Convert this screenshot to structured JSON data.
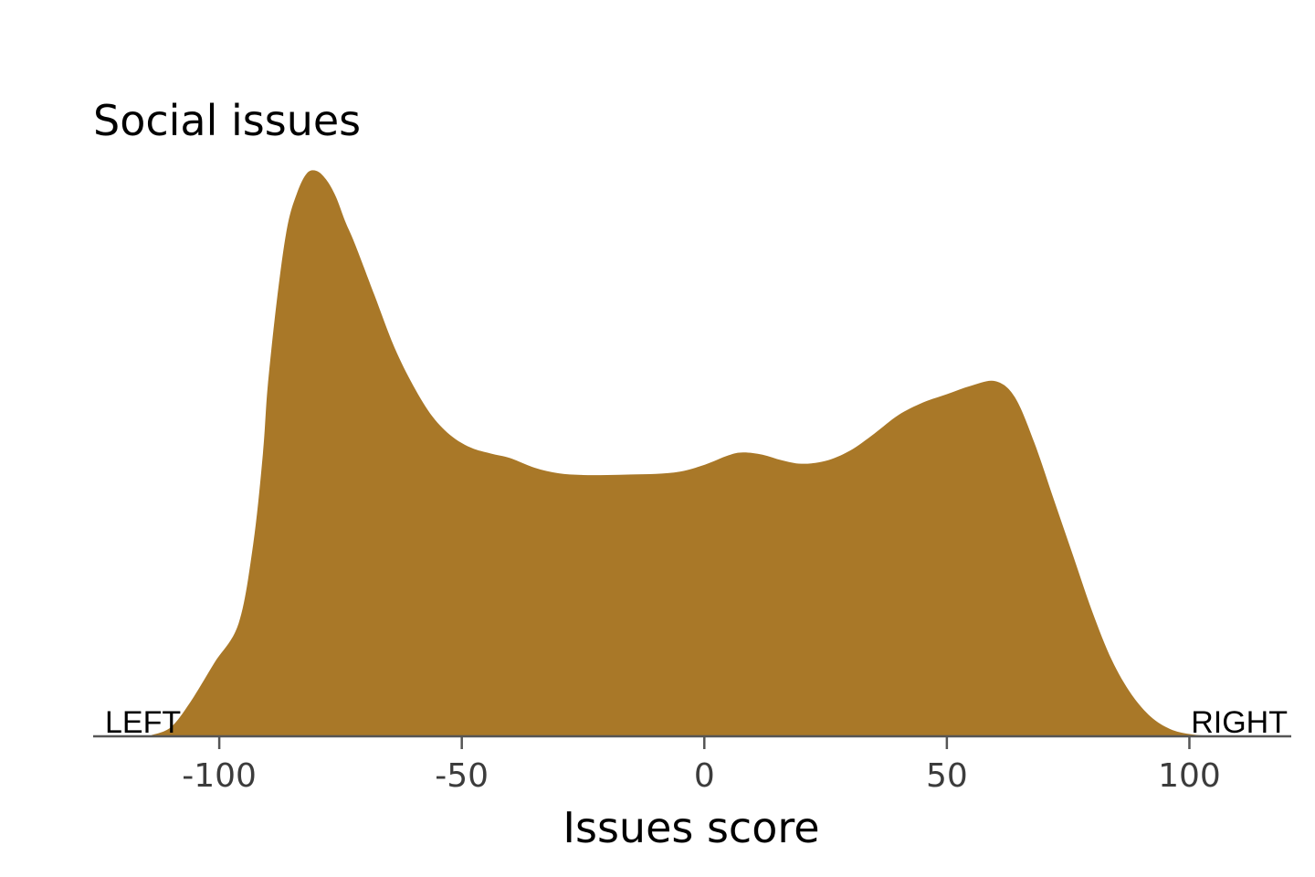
{
  "chart_data": {
    "type": "area",
    "title": "Social issues",
    "xlabel": "Issues score",
    "ylabel": "",
    "xlim": [
      -126,
      121
    ],
    "ylim": [
      0,
      1.0
    ],
    "x_ticks": [
      -100,
      -50,
      0,
      50,
      100
    ],
    "grid": false,
    "legend": "none",
    "annotations": {
      "left": "LEFT",
      "right": "RIGHT"
    },
    "colors": {
      "fill": "#a97828",
      "axis": "#555555",
      "tick_text": "#3c3c3c"
    },
    "series": [
      {
        "x": [
          -114,
          -110,
          -106,
          -101,
          -96,
          -93,
          -91,
          -90,
          -88,
          -86,
          -84,
          -82,
          -80,
          -78,
          -76,
          -74,
          -72,
          -68,
          -64,
          -60,
          -56,
          -52,
          -48,
          -44,
          -40,
          -35,
          -30,
          -25,
          -20,
          -15,
          -10,
          -5,
          0,
          5,
          8,
          12,
          16,
          20,
          25,
          30,
          35,
          40,
          45,
          50,
          55,
          60,
          64,
          68,
          72,
          76,
          80,
          84,
          88,
          92,
          96,
          100,
          104,
          108
        ],
        "y": [
          0.002,
          0.016,
          0.06,
          0.13,
          0.2,
          0.34,
          0.5,
          0.62,
          0.78,
          0.9,
          0.96,
          0.995,
          1.0,
          0.985,
          0.955,
          0.91,
          0.87,
          0.78,
          0.69,
          0.62,
          0.565,
          0.53,
          0.51,
          0.5,
          0.492,
          0.475,
          0.465,
          0.462,
          0.462,
          0.463,
          0.464,
          0.468,
          0.48,
          0.497,
          0.502,
          0.498,
          0.488,
          0.482,
          0.487,
          0.505,
          0.535,
          0.568,
          0.59,
          0.605,
          0.62,
          0.628,
          0.6,
          0.52,
          0.42,
          0.32,
          0.22,
          0.135,
          0.075,
          0.035,
          0.013,
          0.004,
          0.001,
          0.0
        ]
      }
    ]
  }
}
